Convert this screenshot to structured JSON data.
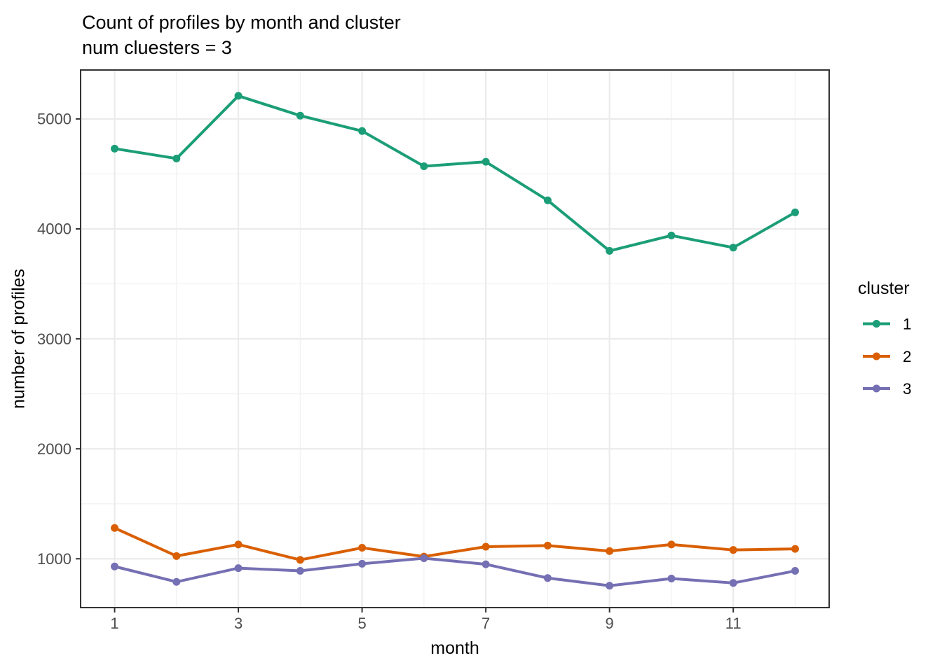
{
  "title": {
    "line1": "Count of profiles by month and cluster",
    "line2": "num cluesters = 3"
  },
  "axes": {
    "x": {
      "label": "month",
      "ticks": [
        1,
        3,
        5,
        7,
        9,
        11
      ],
      "minor": [
        2,
        4,
        6,
        8,
        10,
        12
      ]
    },
    "y": {
      "label": "number of profiles",
      "ticks": [
        1000,
        2000,
        3000,
        4000,
        5000
      ],
      "minor": [
        1500,
        2500,
        3500,
        4500
      ]
    }
  },
  "legend": {
    "title": "cluster",
    "items": [
      {
        "label": "1",
        "color": "#1B9E77"
      },
      {
        "label": "2",
        "color": "#D95F02"
      },
      {
        "label": "3",
        "color": "#7570B3"
      }
    ]
  },
  "colors": {
    "background": "#FFFFFF",
    "grid_major": "#EBEBEB",
    "grid_minor": "#F2F2F2",
    "panel_border": "#333333",
    "tick_mark": "#333333",
    "tick_label": "#4D4D4D",
    "text": "#000000"
  },
  "chart_data": {
    "type": "line",
    "title": "Count of profiles by month and cluster",
    "subtitle": "num cluesters = 3",
    "xlabel": "month",
    "ylabel": "number of profiles",
    "x": [
      1,
      2,
      3,
      4,
      5,
      6,
      7,
      8,
      9,
      10,
      11,
      12
    ],
    "series": [
      {
        "name": "1",
        "color": "#1B9E77",
        "values": [
          4730,
          4640,
          5210,
          5030,
          4890,
          4570,
          4610,
          4260,
          3800,
          3940,
          3830,
          4150
        ]
      },
      {
        "name": "2",
        "color": "#D95F02",
        "values": [
          1280,
          1025,
          1130,
          990,
          1100,
          1020,
          1110,
          1120,
          1070,
          1130,
          1080,
          1090
        ]
      },
      {
        "name": "3",
        "color": "#7570B3",
        "values": [
          930,
          790,
          915,
          890,
          955,
          1005,
          950,
          825,
          755,
          820,
          780,
          890
        ]
      }
    ],
    "xlim": [
      0.45,
      12.55
    ],
    "ylim": [
      556,
      5445
    ],
    "x_major_breaks": [
      1,
      3,
      5,
      7,
      9,
      11
    ],
    "x_minor_breaks": [
      2,
      4,
      6,
      8,
      10,
      12
    ],
    "y_major_breaks": [
      1000,
      2000,
      3000,
      4000,
      5000
    ],
    "y_minor_breaks": [
      1500,
      2500,
      3500,
      4500
    ],
    "grid": true,
    "legend_position": "right"
  }
}
